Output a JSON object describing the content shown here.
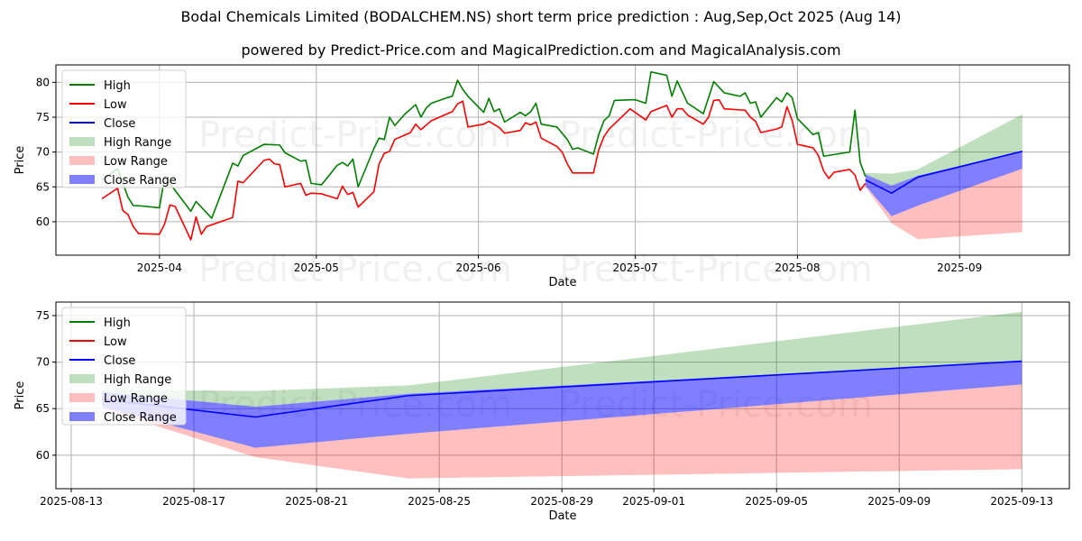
{
  "title": "Bodal Chemicals Limited (BODALCHEM.NS) short term price prediction : Aug,Sep,Oct 2025 (Aug 14)",
  "subtitle": "powered by Predict-Price.com and MagicalPrediction.com and MagicalAnalysis.com",
  "watermark": "Predict-Price.com",
  "colors": {
    "high": "#008000",
    "low": "#ff0000",
    "close": "#0000ff",
    "high_range": "#bfdfbf",
    "low_range": "#ffbfbf",
    "close_range": "#8080ff"
  },
  "chart_data": [
    {
      "type": "line",
      "x_unit": "days since 2025-04-01",
      "xlabel": "Date",
      "ylabel": "Price",
      "xlim": [
        -19.8,
        174
      ],
      "ylim": [
        55.2,
        82.5
      ],
      "grid": true,
      "legend_placement": "top-left",
      "legend": [
        "High",
        "Low",
        "Close",
        "High Range",
        "Low Range",
        "Close Range"
      ],
      "xticks": [
        {
          "v": 0,
          "label": "2025-04"
        },
        {
          "v": 30,
          "label": "2025-05"
        },
        {
          "v": 61,
          "label": "2025-06"
        },
        {
          "v": 91,
          "label": "2025-07"
        },
        {
          "v": 122,
          "label": "2025-08"
        },
        {
          "v": 153,
          "label": "2025-09"
        }
      ],
      "yticks": [
        {
          "v": 60,
          "label": "60"
        },
        {
          "v": 65,
          "label": "65"
        },
        {
          "v": 70,
          "label": "70"
        },
        {
          "v": 75,
          "label": "75"
        },
        {
          "v": 80,
          "label": "80"
        }
      ],
      "high": [
        [
          -11,
          66.0
        ],
        [
          -8,
          67.6
        ],
        [
          -6,
          63.5
        ],
        [
          -5,
          62.3
        ],
        [
          -4,
          62.3
        ],
        [
          0,
          62.0
        ],
        [
          1,
          66.5
        ],
        [
          3,
          64.5
        ],
        [
          6,
          61.5
        ],
        [
          7,
          62.9
        ],
        [
          10,
          60.5
        ],
        [
          14,
          68.4
        ],
        [
          15,
          68.0
        ],
        [
          16,
          69.5
        ],
        [
          20,
          71.1
        ],
        [
          23,
          71.0
        ],
        [
          24,
          69.9
        ],
        [
          27,
          68.7
        ],
        [
          28,
          68.8
        ],
        [
          29,
          65.5
        ],
        [
          31,
          65.3
        ],
        [
          34,
          68.1
        ],
        [
          35,
          68.5
        ],
        [
          36,
          68.0
        ],
        [
          37,
          69.0
        ],
        [
          38,
          65.0
        ],
        [
          41,
          70.5
        ],
        [
          42,
          72.0
        ],
        [
          43,
          71.8
        ],
        [
          44,
          75.0
        ],
        [
          45,
          73.8
        ],
        [
          47,
          75.5
        ],
        [
          49,
          76.8
        ],
        [
          50,
          75.0
        ],
        [
          51,
          76.3
        ],
        [
          52,
          77.0
        ],
        [
          55,
          77.8
        ],
        [
          56,
          78.0
        ],
        [
          57,
          80.3
        ],
        [
          58,
          79.0
        ],
        [
          59,
          78.0
        ],
        [
          62,
          75.7
        ],
        [
          63,
          77.7
        ],
        [
          64,
          75.8
        ],
        [
          65,
          76.2
        ],
        [
          66,
          74.3
        ],
        [
          69,
          75.7
        ],
        [
          70,
          75.2
        ],
        [
          71,
          75.8
        ],
        [
          72,
          77.0
        ],
        [
          73,
          74.0
        ],
        [
          76,
          73.6
        ],
        [
          78,
          71.8
        ],
        [
          79,
          70.4
        ],
        [
          80,
          70.6
        ],
        [
          83,
          69.7
        ],
        [
          84,
          72.5
        ],
        [
          85,
          74.5
        ],
        [
          86,
          75.2
        ],
        [
          87,
          77.4
        ],
        [
          90,
          77.5
        ],
        [
          91,
          77.5
        ],
        [
          93,
          77.0
        ],
        [
          94,
          81.5
        ],
        [
          97,
          81.0
        ],
        [
          98,
          78.0
        ],
        [
          99,
          80.2
        ],
        [
          101,
          77.0
        ],
        [
          104,
          75.5
        ],
        [
          106,
          80.1
        ],
        [
          108,
          78.5
        ],
        [
          111,
          78.0
        ],
        [
          112,
          78.5
        ],
        [
          113,
          77.0
        ],
        [
          114,
          77.2
        ],
        [
          115,
          75.0
        ],
        [
          118,
          77.8
        ],
        [
          119,
          77.2
        ],
        [
          120,
          78.5
        ],
        [
          121,
          77.8
        ],
        [
          122,
          74.8
        ],
        [
          125,
          72.5
        ],
        [
          126,
          72.8
        ],
        [
          127,
          69.4
        ],
        [
          132,
          70.0
        ],
        [
          133,
          76.0
        ],
        [
          134,
          68.5
        ],
        [
          135,
          66.5
        ]
      ],
      "low": [
        [
          -11,
          63.3
        ],
        [
          -8,
          64.8
        ],
        [
          -7,
          61.6
        ],
        [
          -6,
          61.0
        ],
        [
          -5,
          59.3
        ],
        [
          -4,
          58.3
        ],
        [
          0,
          58.2
        ],
        [
          1,
          59.7
        ],
        [
          2,
          62.4
        ],
        [
          3,
          62.2
        ],
        [
          6,
          57.4
        ],
        [
          7,
          60.7
        ],
        [
          8,
          58.2
        ],
        [
          9,
          59.3
        ],
        [
          14,
          60.6
        ],
        [
          15,
          65.8
        ],
        [
          16,
          65.6
        ],
        [
          20,
          68.8
        ],
        [
          21,
          69.0
        ],
        [
          22,
          68.3
        ],
        [
          23,
          68.2
        ],
        [
          24,
          65.0
        ],
        [
          27,
          65.5
        ],
        [
          28,
          63.8
        ],
        [
          29,
          64.1
        ],
        [
          31,
          64.0
        ],
        [
          34,
          63.3
        ],
        [
          35,
          65.1
        ],
        [
          36,
          63.9
        ],
        [
          37,
          64.2
        ],
        [
          38,
          62.1
        ],
        [
          41,
          64.3
        ],
        [
          42,
          68.3
        ],
        [
          43,
          69.8
        ],
        [
          44,
          70.1
        ],
        [
          45,
          71.8
        ],
        [
          48,
          72.8
        ],
        [
          49,
          74.0
        ],
        [
          50,
          73.2
        ],
        [
          52,
          74.5
        ],
        [
          56,
          75.8
        ],
        [
          57,
          76.9
        ],
        [
          58,
          77.3
        ],
        [
          59,
          73.6
        ],
        [
          62,
          74.0
        ],
        [
          63,
          74.4
        ],
        [
          65,
          73.5
        ],
        [
          66,
          72.7
        ],
        [
          69,
          73.1
        ],
        [
          70,
          74.2
        ],
        [
          71,
          73.9
        ],
        [
          72,
          74.3
        ],
        [
          73,
          72.0
        ],
        [
          76,
          70.8
        ],
        [
          77,
          70.0
        ],
        [
          78,
          68.3
        ],
        [
          79,
          67.0
        ],
        [
          83,
          67.0
        ],
        [
          84,
          70.3
        ],
        [
          85,
          72.2
        ],
        [
          86,
          73.3
        ],
        [
          90,
          76.2
        ],
        [
          93,
          74.6
        ],
        [
          94,
          75.8
        ],
        [
          97,
          76.7
        ],
        [
          98,
          75.0
        ],
        [
          99,
          76.2
        ],
        [
          100,
          76.2
        ],
        [
          101,
          75.3
        ],
        [
          104,
          74.0
        ],
        [
          105,
          75.0
        ],
        [
          106,
          77.4
        ],
        [
          107,
          77.5
        ],
        [
          108,
          76.2
        ],
        [
          112,
          76.0
        ],
        [
          113,
          75.0
        ],
        [
          114,
          74.4
        ],
        [
          115,
          72.8
        ],
        [
          118,
          73.3
        ],
        [
          119,
          73.6
        ],
        [
          120,
          76.5
        ],
        [
          121,
          74.5
        ],
        [
          122,
          71.1
        ],
        [
          125,
          70.6
        ],
        [
          126,
          69.5
        ],
        [
          127,
          67.3
        ],
        [
          128,
          66.2
        ],
        [
          129,
          67.1
        ],
        [
          132,
          67.5
        ],
        [
          133,
          66.7
        ],
        [
          134,
          64.5
        ],
        [
          135,
          65.5
        ]
      ],
      "prediction": {
        "x": [
          135,
          140,
          145,
          165
        ],
        "close": [
          66.0,
          64.1,
          66.4,
          70.1
        ],
        "close_range": {
          "upper": [
            66.8,
            65.2,
            66.6,
            70.1
          ],
          "lower": [
            65.2,
            60.8,
            62.3,
            67.6
          ]
        },
        "high_range": {
          "upper": [
            67.0,
            66.9,
            67.5,
            75.4
          ],
          "lower": [
            66.8,
            65.2,
            66.6,
            70.1
          ]
        },
        "low_range": {
          "upper": [
            65.2,
            60.8,
            62.3,
            67.6
          ],
          "lower": [
            65.0,
            59.8,
            57.5,
            58.5
          ]
        }
      }
    },
    {
      "type": "area",
      "x_unit": "days since 2025-08-13",
      "xlabel": "Date",
      "ylabel": "Price",
      "xlim": [
        -0.5,
        32.55
      ],
      "ylim": [
        56.4,
        76.45
      ],
      "grid": true,
      "legend_placement": "top-left",
      "legend": [
        "High",
        "Low",
        "Close",
        "High Range",
        "Low Range",
        "Close Range"
      ],
      "xticks": [
        {
          "v": 0,
          "label": "2025-08-13"
        },
        {
          "v": 4,
          "label": "2025-08-17"
        },
        {
          "v": 8,
          "label": "2025-08-21"
        },
        {
          "v": 12,
          "label": "2025-08-25"
        },
        {
          "v": 16,
          "label": "2025-08-29"
        },
        {
          "v": 19,
          "label": "2025-09-01"
        },
        {
          "v": 23,
          "label": "2025-09-05"
        },
        {
          "v": 27,
          "label": "2025-09-09"
        },
        {
          "v": 31,
          "label": "2025-09-13"
        }
      ],
      "yticks": [
        {
          "v": 60,
          "label": "60"
        },
        {
          "v": 65,
          "label": "65"
        },
        {
          "v": 70,
          "label": "70"
        },
        {
          "v": 75,
          "label": "75"
        }
      ],
      "prediction": {
        "x": [
          1,
          6,
          11,
          31
        ],
        "close": [
          66.0,
          64.1,
          66.4,
          70.1
        ],
        "close_range": {
          "upper": [
            66.8,
            65.2,
            66.6,
            70.1
          ],
          "lower": [
            65.2,
            60.8,
            62.3,
            67.6
          ]
        },
        "high_range": {
          "upper": [
            67.0,
            66.9,
            67.5,
            75.4
          ],
          "lower": [
            66.8,
            65.2,
            66.6,
            70.1
          ]
        },
        "low_range": {
          "upper": [
            65.2,
            60.8,
            62.3,
            67.6
          ],
          "lower": [
            65.0,
            59.8,
            57.5,
            58.5
          ]
        }
      }
    }
  ]
}
